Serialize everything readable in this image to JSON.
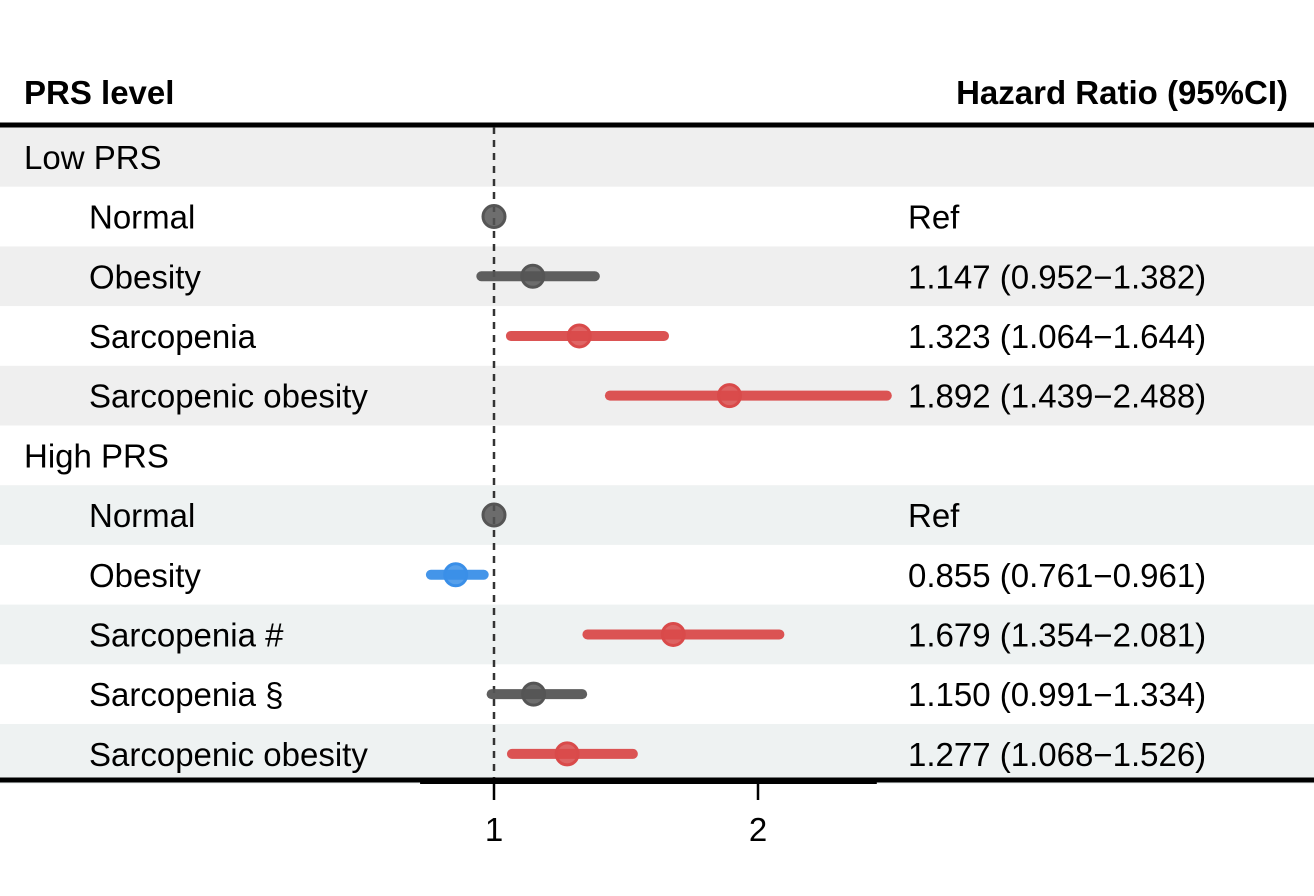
{
  "chart_data": {
    "type": "forest",
    "headers": {
      "left": "PRS level",
      "right": "Hazard Ratio (95%CI)"
    },
    "reference_line": 1,
    "xlim": [
      0.72,
      2.45
    ],
    "xticks": [
      1,
      2
    ],
    "colors": {
      "neutral": "#555555",
      "risk": "#d94a4a",
      "protective": "#3a8fe8",
      "shade": "#efefef",
      "shade_alt": "#eef2f2"
    },
    "groups": [
      {
        "label": "Low PRS",
        "rows": [
          {
            "label": "Normal",
            "hr": 1.0,
            "lower": 1.0,
            "upper": 1.0,
            "text": "Ref",
            "color": "neutral"
          },
          {
            "label": "Obesity",
            "hr": 1.147,
            "lower": 0.952,
            "upper": 1.382,
            "text": "1.147 (0.952−1.382)",
            "color": "neutral"
          },
          {
            "label": "Sarcopenia",
            "hr": 1.323,
            "lower": 1.064,
            "upper": 1.644,
            "text": "1.323 (1.064−1.644)",
            "color": "risk"
          },
          {
            "label": "Sarcopenic obesity",
            "hr": 1.892,
            "lower": 1.439,
            "upper": 2.488,
            "text": "1.892 (1.439−2.488)",
            "color": "risk"
          }
        ]
      },
      {
        "label": "High PRS",
        "rows": [
          {
            "label": "Normal",
            "hr": 1.0,
            "lower": 1.0,
            "upper": 1.0,
            "text": "Ref",
            "color": "neutral"
          },
          {
            "label": "Obesity",
            "hr": 0.855,
            "lower": 0.761,
            "upper": 0.961,
            "text": "0.855 (0.761−0.961)",
            "color": "protective"
          },
          {
            "label": "Sarcopenia #",
            "hr": 1.679,
            "lower": 1.354,
            "upper": 2.081,
            "text": "1.679 (1.354−2.081)",
            "color": "risk"
          },
          {
            "label": "Sarcopenia §",
            "hr": 1.15,
            "lower": 0.991,
            "upper": 1.334,
            "text": "1.150 (0.991−1.334)",
            "color": "neutral"
          },
          {
            "label": "Sarcopenic obesity",
            "hr": 1.277,
            "lower": 1.068,
            "upper": 1.526,
            "text": "1.277 (1.068−1.526)",
            "color": "risk"
          }
        ]
      }
    ]
  }
}
